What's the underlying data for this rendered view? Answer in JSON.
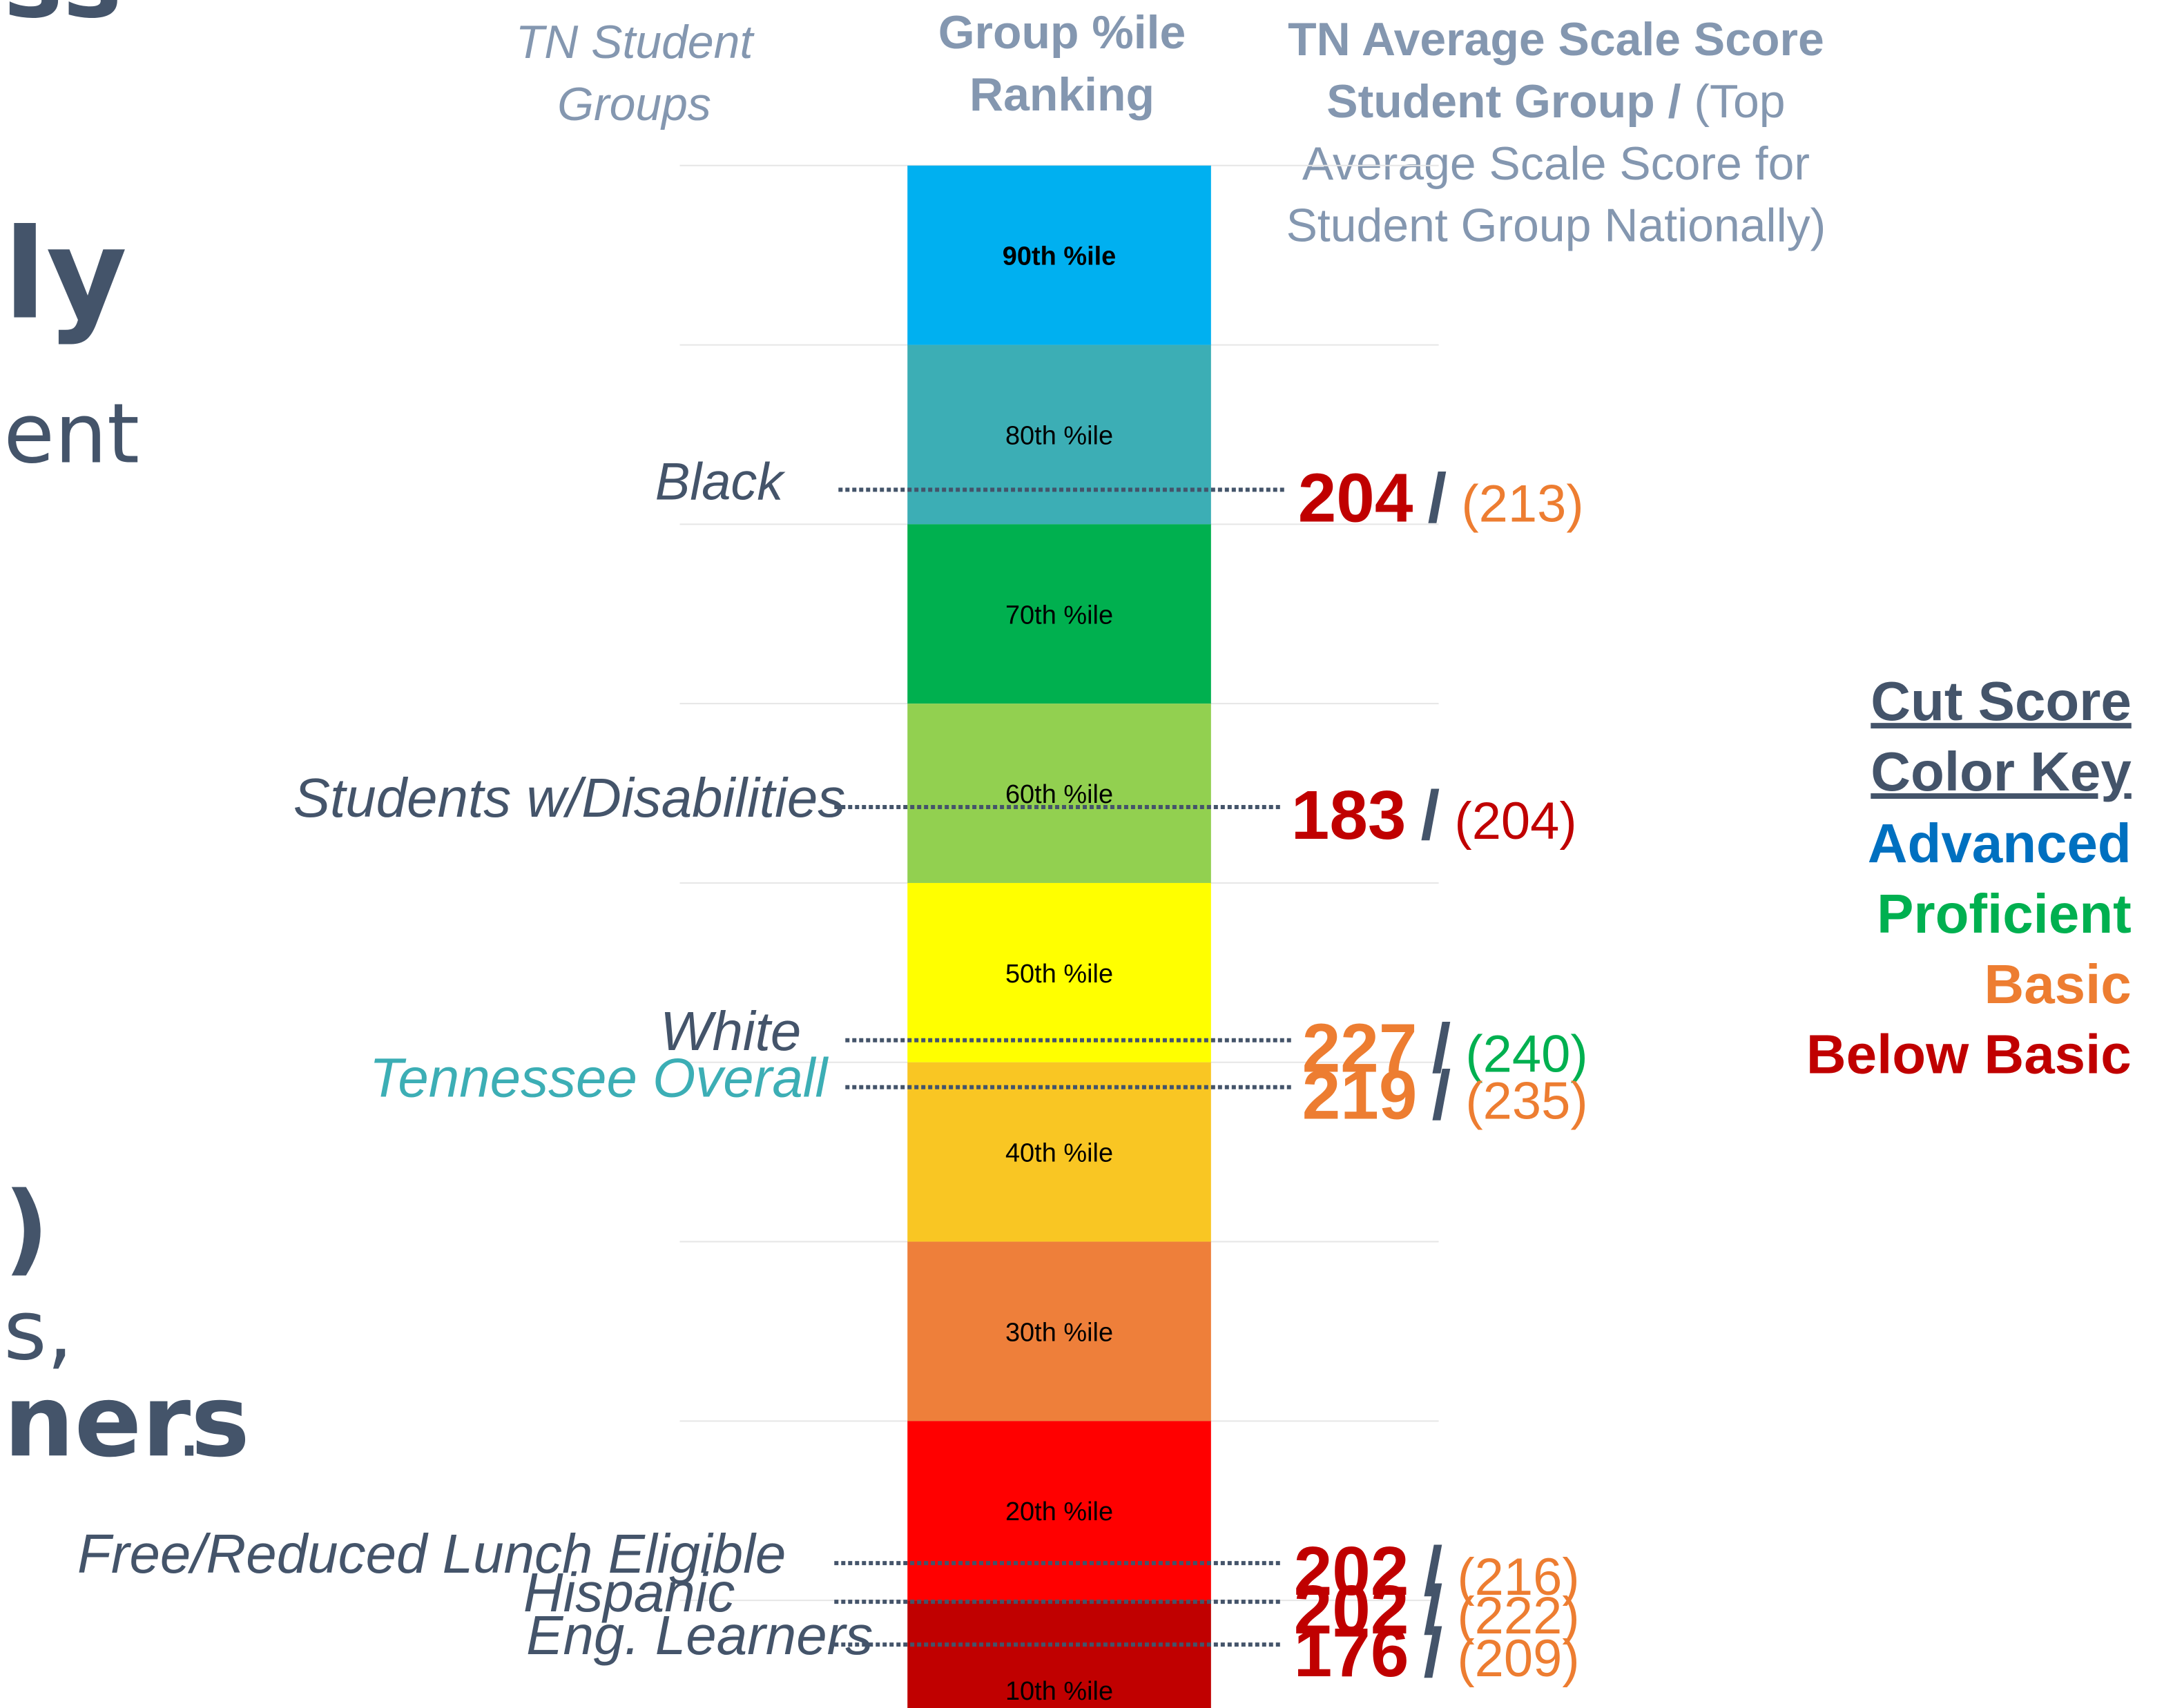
{
  "left_fragments": [
    {
      "text": "ss",
      "bold": true
    },
    {
      "text": "ly",
      "bold": true
    },
    {
      "text": "ent",
      "bold": false
    },
    {
      "text": ")",
      "bold": true
    },
    {
      "text": "s,",
      "bold": false
    },
    {
      "text": "ners",
      "bold": true
    },
    {
      "text": ".",
      "bold": false
    }
  ],
  "headers": {
    "groups": [
      "TN Student",
      "Groups"
    ],
    "ranking": [
      "Group %ile",
      "Ranking"
    ],
    "score": [
      [
        {
          "text": "TN Average Scale Score",
          "bold": true
        }
      ],
      [
        {
          "text": "Student Group /",
          "bold": true
        },
        {
          "text": " (Top",
          "bold": false
        }
      ],
      [
        {
          "text": "Average Scale Score for",
          "bold": false
        }
      ],
      [
        {
          "text": "Student Group Nationally)",
          "bold": false
        }
      ]
    ]
  },
  "bands": [
    {
      "label": "90th %ile",
      "color": "#00b0f0"
    },
    {
      "label": "80th %ile",
      "color": "#3caeb5"
    },
    {
      "label": "70th %ile",
      "color": "#00b04f"
    },
    {
      "label": "60th %ile",
      "color": "#92d050"
    },
    {
      "label": "50th %ile",
      "color": "#ffff00"
    },
    {
      "label": "40th %ile",
      "color": "#f9c623"
    },
    {
      "label": "30th %ile",
      "color": "#ee7f3a"
    },
    {
      "label": "20th %ile",
      "color": "#ff0000"
    },
    {
      "label": "10th %ile",
      "color": "#c00000"
    }
  ],
  "separator": "/",
  "groups": [
    {
      "name": "Black",
      "score": 204,
      "national": "(213)",
      "score_color": "#c00000",
      "national_color": "#ed7d31",
      "name_color": "#44546a"
    },
    {
      "name": "Students w/Disabilities",
      "score": 183,
      "national": "(204)",
      "score_color": "#c00000",
      "national_color": "#c00000",
      "name_color": "#44546a"
    },
    {
      "name": "White",
      "score": 227,
      "national": "(240)",
      "score_color": "#ed7d31",
      "national_color": "#00b050",
      "name_color": "#44546a"
    },
    {
      "name": "Tennessee Overall",
      "score": 219,
      "national": "(235)",
      "score_color": "#ed7d31",
      "national_color": "#ed7d31",
      "name_color": "#3caeb5"
    },
    {
      "name": "Free/Reduced Lunch Eligible",
      "score": 202,
      "national": "(216)",
      "score_color": "#c00000",
      "national_color": "#ed7d31",
      "name_color": "#44546a"
    },
    {
      "name": "Hispanic",
      "score": 202,
      "national": "(222)",
      "score_color": "#c00000",
      "national_color": "#ed7d31",
      "name_color": "#44546a"
    },
    {
      "name": "Eng. Learners",
      "score": 176,
      "national": "(209)",
      "score_color": "#c00000",
      "national_color": "#ed7d31",
      "name_color": "#44546a"
    }
  ],
  "key": {
    "title": [
      "Cut Score",
      "Color Key"
    ],
    "items": [
      {
        "label": "Advanced",
        "color": "#0070c0"
      },
      {
        "label": "Proficient",
        "color": "#00b050"
      },
      {
        "label": "Basic",
        "color": "#ed7d31"
      },
      {
        "label": "Below Basic",
        "color": "#c00000"
      }
    ]
  }
}
